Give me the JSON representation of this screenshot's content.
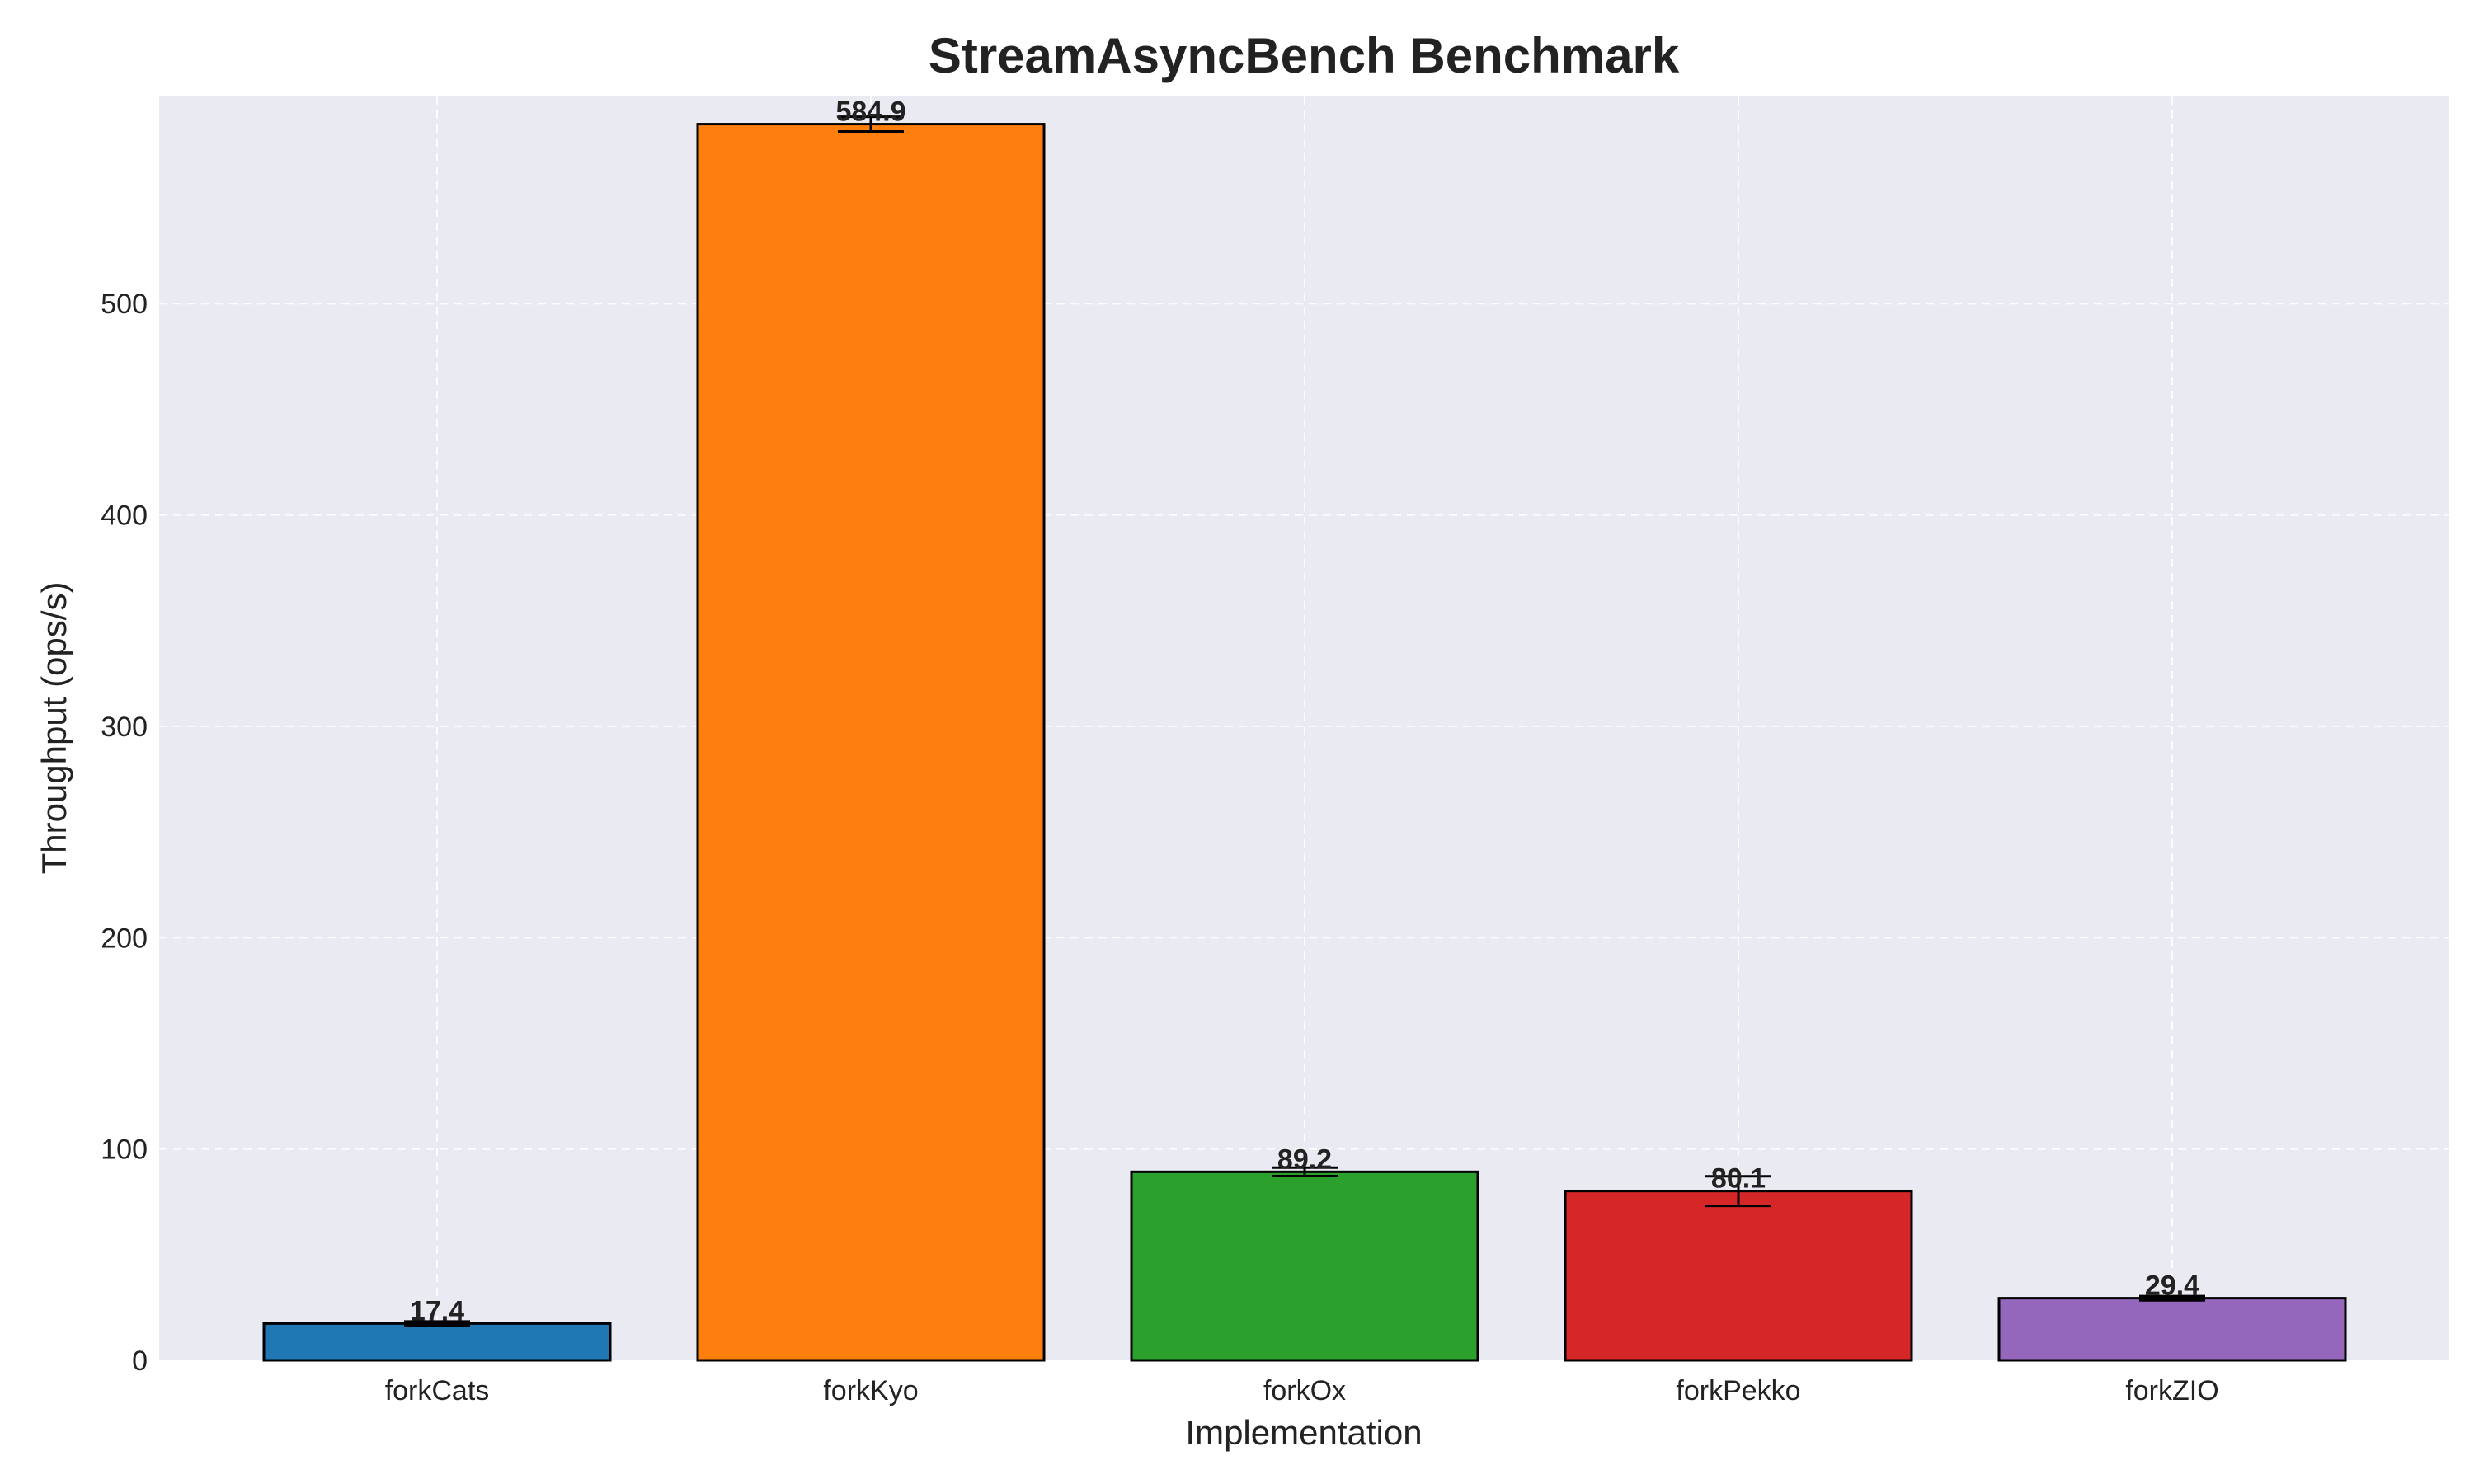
{
  "chart_data": {
    "type": "bar",
    "title": "StreamAsyncBench Benchmark",
    "xlabel": "Implementation",
    "ylabel": "Throughput (ops/s)",
    "categories": [
      "forkCats",
      "forkKyo",
      "forkOx",
      "forkPekko",
      "forkZIO"
    ],
    "values": [
      17.4,
      584.9,
      89.2,
      80.1,
      29.4
    ],
    "value_labels": [
      "17.4",
      "584.9",
      "89.2",
      "80.1",
      "29.4"
    ],
    "errors": [
      1.0,
      3.5,
      2.0,
      7.0,
      1.0
    ],
    "colors": [
      "#1f77b4",
      "#ff7f0e",
      "#2ca02c",
      "#d62728",
      "#9467bd"
    ],
    "ylim": [
      0,
      598
    ],
    "yticks": [
      0,
      100,
      200,
      300,
      400,
      500
    ],
    "ytick_labels": [
      "0",
      "100",
      "200",
      "300",
      "400",
      "500"
    ],
    "grid": true,
    "background": "#eaeaf2"
  }
}
